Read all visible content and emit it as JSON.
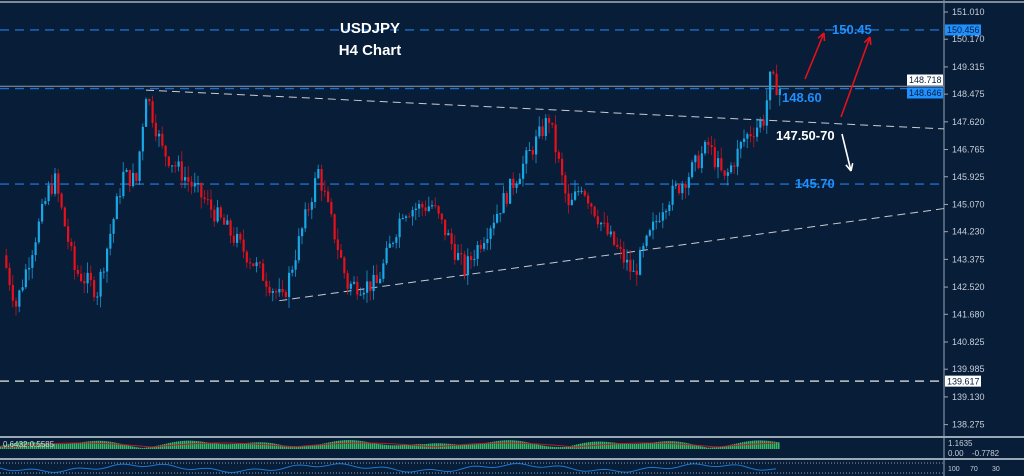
{
  "chart_data": {
    "type": "candlestick",
    "title": "USDJPY",
    "subtitle": "H4 Chart",
    "ylim": [
      137.9,
      151.3
    ],
    "y_ticks": [
      "151.010",
      "150.170",
      "149.315",
      "148.475",
      "147.620",
      "146.765",
      "145.925",
      "145.070",
      "144.230",
      "143.375",
      "142.520",
      "141.680",
      "140.825",
      "139.985",
      "139.130",
      "138.275"
    ],
    "price_tags": [
      {
        "label": "150.456",
        "value": 150.456,
        "color": "#1e90ff"
      },
      {
        "label": "148.718",
        "value": 148.718,
        "color": "#ffffff"
      },
      {
        "label": "148.646",
        "value": 148.646,
        "color": "#1e90ff"
      },
      {
        "label": "139.617",
        "value": 139.617,
        "color": "#ffffff"
      }
    ],
    "horizontal_levels": [
      {
        "value": 150.456,
        "style": "dashed",
        "color": "#1e6fc8"
      },
      {
        "value": 148.646,
        "style": "dashed",
        "color": "#1e6fc8"
      },
      {
        "value": 148.718,
        "style": "solid",
        "color": "#8a9bb0"
      },
      {
        "value": 145.7,
        "style": "dashed",
        "color": "#1e6fc8"
      },
      {
        "value": 139.617,
        "style": "dashed",
        "color": "#c8c8c8"
      }
    ],
    "close_path": [
      [
        0,
        143.5
      ],
      [
        4,
        141.97
      ],
      [
        14,
        145.5
      ],
      [
        16,
        145.8
      ],
      [
        22,
        143.05
      ],
      [
        29,
        142.4
      ],
      [
        37,
        145.98
      ],
      [
        41,
        145.8
      ],
      [
        44,
        148.54
      ],
      [
        49,
        146.75
      ],
      [
        62,
        145.2
      ],
      [
        74,
        143.66
      ],
      [
        86,
        142.1
      ],
      [
        92,
        144.28
      ],
      [
        97,
        146.1
      ],
      [
        106,
        142.58
      ],
      [
        115,
        142.6
      ],
      [
        123,
        144.9
      ],
      [
        132,
        145.05
      ],
      [
        142,
        143.05
      ],
      [
        154,
        145.2
      ],
      [
        168,
        147.74
      ],
      [
        174,
        144.9
      ],
      [
        178,
        145.7
      ],
      [
        185,
        144.3
      ],
      [
        194,
        142.9
      ],
      [
        203,
        145.05
      ],
      [
        211,
        146.0
      ],
      [
        217,
        146.9
      ],
      [
        222,
        145.8
      ],
      [
        228,
        147.1
      ],
      [
        234,
        147.7
      ],
      [
        236,
        148.91
      ],
      [
        239,
        148.65
      ]
    ],
    "trendlines": [
      {
        "from": [
          44,
          148.6
        ],
        "to": [
          290,
          147.4
        ]
      },
      {
        "from": [
          85,
          142.1
        ],
        "to": [
          290,
          144.95
        ]
      }
    ],
    "annotations": [
      {
        "text": "150.45",
        "value": 150.45,
        "color": "#1e90ff"
      },
      {
        "text": "148.60",
        "value": 148.6,
        "color": "#1e90ff"
      },
      {
        "text": "147.50-70",
        "value": 147.55,
        "color": "#ffffff"
      },
      {
        "text": "145.70",
        "value": 145.7,
        "color": "#1e90ff"
      }
    ],
    "colors": {
      "background": "#071d38",
      "bull": "#19a7e6",
      "bear": "#e8101a",
      "arrow_up": "#e8101a",
      "arrow_down": "#ffffff"
    },
    "indicator_macd": {
      "labels": [
        "0.6432",
        "0.5585"
      ],
      "scale": [
        "1.1635",
        "0.00",
        "-0.7782"
      ]
    },
    "indicator_lower": {
      "scale": [
        "100",
        "70",
        "30"
      ]
    }
  }
}
